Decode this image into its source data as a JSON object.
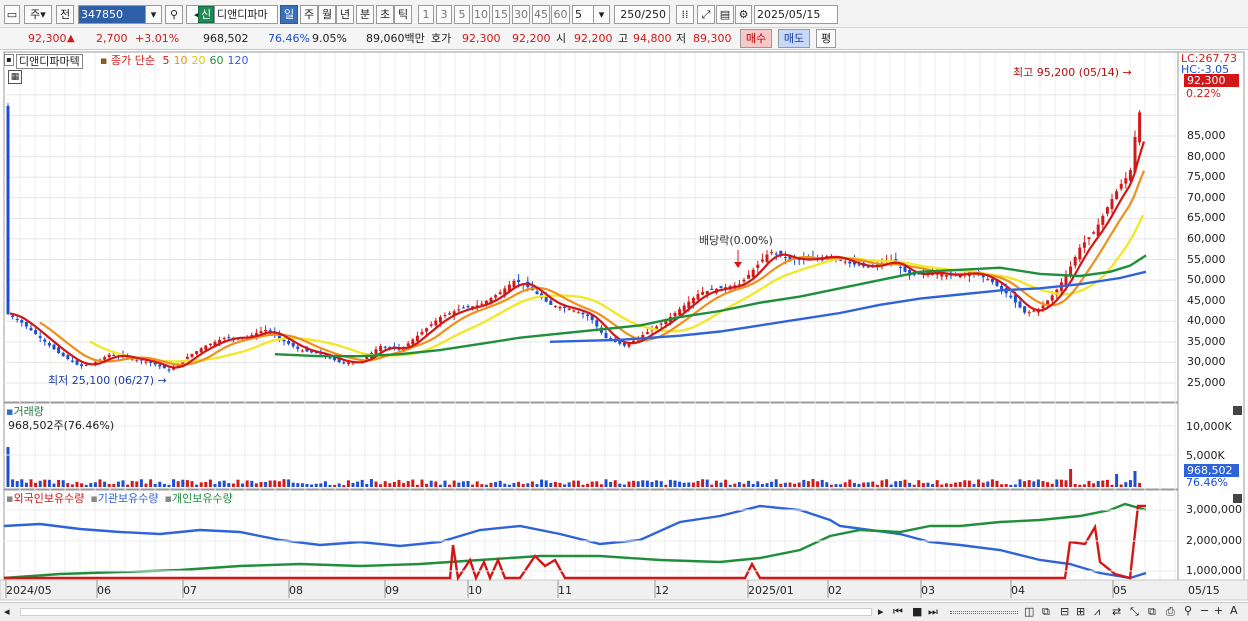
{
  "toolbar": {
    "period_mode": "주",
    "prev_label": "전",
    "stock_code": "347850",
    "new_badge": "신",
    "stock_name": "디앤디파마",
    "periods": [
      "일",
      "주",
      "월",
      "년",
      "분",
      "초",
      "틱"
    ],
    "active_period": "일",
    "intervals": [
      "1",
      "3",
      "5",
      "10",
      "15",
      "30",
      "45",
      "60"
    ],
    "interval_value": "5",
    "count_display": "250",
    "count_total": "/250",
    "date": "2025/05/15"
  },
  "quote": {
    "price": "92,300",
    "arrow": "▲",
    "change": "2,700",
    "change_pct": "+3.01%",
    "volume": "968,502",
    "volume_ratio": "76.46%",
    "turnover": "9.05%",
    "amount": "89,060백만",
    "ask_label": "호가",
    "ask1": "92,300",
    "ask2": "92,200",
    "open_label": "시",
    "open": "92,200",
    "high_label": "고",
    "high": "94,800",
    "low_label": "저",
    "low": "89,300",
    "buy_label": "매수",
    "sell_label": "매도",
    "avg_label": "평"
  },
  "price_panel": {
    "name_tag": "디앤디파마텍",
    "legend_prefix": "종가 단순",
    "ma_periods": [
      "5",
      "10",
      "20",
      "60",
      "120"
    ],
    "ma_colors": [
      "#d01818",
      "#f08c1a",
      "#f2e82a",
      "#1f8f3c",
      "#2f63d8"
    ],
    "lc_label": "LC:267.73",
    "hc_label": "HC:-3.05",
    "current_price_tag": "92,300",
    "current_pct_tag": "0.22%",
    "high_annotation": "최고 95,200 (05/14)",
    "low_annotation": "최저 25,100 (06/27)",
    "dividend_annotation": "배당락(0.00%)",
    "y_ticks": [
      "85,000",
      "80,000",
      "75,000",
      "70,000",
      "65,000",
      "60,000",
      "55,000",
      "50,000",
      "45,000",
      "40,000",
      "35,000",
      "30,000",
      "25,000"
    ]
  },
  "volume_panel": {
    "title": "거래량",
    "readout": "968,502주(76.46%)",
    "y_ticks": [
      "10,000K",
      "5,000K"
    ],
    "value_tag": "968,502",
    "pct_tag": "76.46%"
  },
  "holding_panel": {
    "legend": [
      "외국인보유수량",
      "기관보유수량",
      "개인보유수량"
    ],
    "legend_colors": [
      "#d01818",
      "#2f63d8",
      "#1f8f3c"
    ],
    "y_ticks": [
      "3,000,000",
      "2,000,000",
      "1,000,000"
    ]
  },
  "x_axis": {
    "labels": [
      "2024/05",
      "06",
      "07",
      "08",
      "09",
      "10",
      "11",
      "12",
      "2025/01",
      "02",
      "03",
      "04",
      "05"
    ],
    "right_label": "05/15"
  },
  "chart_data": {
    "type": "line",
    "series": [
      {
        "name": "5",
        "values": [
          42000,
          36000,
          32000,
          27000,
          30000,
          33000,
          35000,
          37000,
          31000,
          30000,
          34000,
          40000,
          46000,
          49000,
          43000,
          40000,
          35000,
          39000,
          45000,
          50000,
          58000,
          55000,
          52000,
          48000,
          45000,
          42000,
          53000,
          65000,
          78000,
          82000
        ]
      },
      {
        "name": "120",
        "values": [
          35000,
          35500,
          36000,
          37500,
          39000,
          41000,
          43500,
          45000,
          46500,
          48000,
          49000,
          52000
        ]
      }
    ],
    "high": {
      "value": 95200,
      "date": "05/14"
    },
    "low": {
      "value": 25100,
      "date": "06/27"
    },
    "ylim": [
      22000,
      98000
    ]
  }
}
